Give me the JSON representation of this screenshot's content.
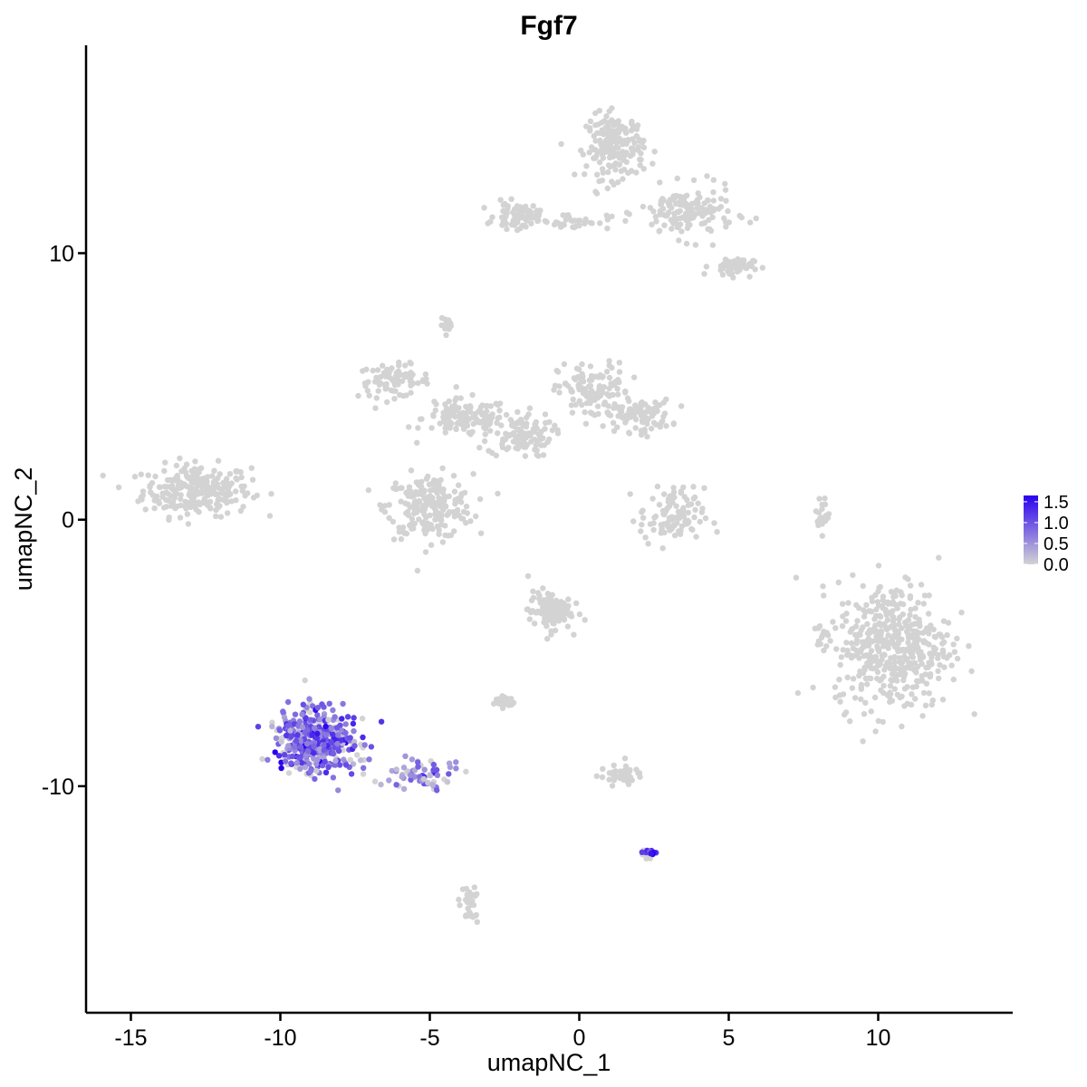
{
  "chart_data": {
    "type": "scatter",
    "title": "Fgf7",
    "xlabel": "umapNC_1",
    "ylabel": "umapNC_2",
    "xlim": [
      -16.5,
      14.5
    ],
    "ylim": [
      -18.5,
      17.8
    ],
    "xticks": [
      -15,
      -10,
      -5,
      0,
      5,
      10
    ],
    "yticks": [
      -10,
      0,
      10
    ],
    "tick_labels_x": [
      "-15",
      "-10",
      "-5",
      "0",
      "5",
      "10"
    ],
    "tick_labels_y": [
      "-10",
      "0",
      "10"
    ],
    "grid": false,
    "legend": {
      "placement": "right",
      "type": "colorbar",
      "ticks": [
        "1.5",
        "1.0",
        "0.5",
        "0.0"
      ],
      "tick_values": [
        1.5,
        1.0,
        0.5,
        0.0
      ],
      "range": [
        0.0,
        1.65
      ],
      "low_color": "#d3d3d3",
      "high_color": "#2a00f0"
    },
    "point_color_low": "#d3d3d3",
    "point_color_high": "#2a00f0",
    "clusters": [
      {
        "center": [
          -12.8,
          1.1
        ],
        "spread": [
          1.5,
          0.8
        ],
        "n": 260,
        "expr": 0
      },
      {
        "center": [
          -6.2,
          5.2
        ],
        "spread": [
          1.0,
          0.5
        ],
        "n": 80,
        "expr": 0
      },
      {
        "center": [
          -3.8,
          3.8
        ],
        "spread": [
          1.2,
          0.6
        ],
        "n": 120,
        "expr": 0
      },
      {
        "center": [
          -5.0,
          0.5
        ],
        "spread": [
          1.2,
          1.0
        ],
        "n": 220,
        "expr": 0
      },
      {
        "center": [
          -2.0,
          3.2
        ],
        "spread": [
          0.9,
          0.7
        ],
        "n": 110,
        "expr": 0
      },
      {
        "center": [
          0.5,
          4.8
        ],
        "spread": [
          1.0,
          0.9
        ],
        "n": 120,
        "expr": 0
      },
      {
        "center": [
          2.0,
          3.9
        ],
        "spread": [
          0.9,
          0.5
        ],
        "n": 90,
        "expr": 0
      },
      {
        "center": [
          -4.4,
          7.3
        ],
        "spread": [
          0.2,
          0.2
        ],
        "n": 15,
        "expr": 0
      },
      {
        "center": [
          1.2,
          14.0
        ],
        "spread": [
          0.8,
          1.0
        ],
        "n": 190,
        "expr": 0
      },
      {
        "center": [
          3.6,
          11.5
        ],
        "spread": [
          1.3,
          0.8
        ],
        "n": 150,
        "expr": 0
      },
      {
        "center": [
          -2.1,
          11.4
        ],
        "spread": [
          0.6,
          0.4
        ],
        "n": 70,
        "expr": 0
      },
      {
        "center": [
          -0.3,
          11.2
        ],
        "spread": [
          1.1,
          0.25
        ],
        "n": 40,
        "expr": 0
      },
      {
        "center": [
          5.1,
          9.5
        ],
        "spread": [
          0.6,
          0.3
        ],
        "n": 50,
        "expr": 0
      },
      {
        "center": [
          3.1,
          0.1
        ],
        "spread": [
          0.9,
          0.9
        ],
        "n": 100,
        "expr": 0
      },
      {
        "center": [
          10.5,
          -4.7
        ],
        "spread": [
          1.6,
          2.0
        ],
        "n": 460,
        "expr": 0
      },
      {
        "center": [
          8.1,
          -4.4
        ],
        "spread": [
          0.2,
          0.4
        ],
        "n": 12,
        "expr": 0
      },
      {
        "center": [
          8.1,
          0.2
        ],
        "spread": [
          0.2,
          0.6
        ],
        "n": 18,
        "expr": 0
      },
      {
        "center": [
          -1.0,
          -3.4
        ],
        "spread": [
          0.6,
          0.6
        ],
        "n": 110,
        "expr": 0
      },
      {
        "center": [
          -2.5,
          -6.8
        ],
        "spread": [
          0.3,
          0.2
        ],
        "n": 30,
        "expr": 0
      },
      {
        "center": [
          1.4,
          -9.6
        ],
        "spread": [
          0.6,
          0.3
        ],
        "n": 45,
        "expr": 0
      },
      {
        "center": [
          -3.7,
          -14.5
        ],
        "spread": [
          0.3,
          0.6
        ],
        "n": 30,
        "expr": 0
      },
      {
        "center": [
          -8.8,
          -8.3
        ],
        "spread": [
          1.1,
          1.0
        ],
        "n": 420,
        "expr": 0.55
      },
      {
        "center": [
          -5.4,
          -9.6
        ],
        "spread": [
          0.9,
          0.4
        ],
        "n": 70,
        "expr": 0.3
      },
      {
        "center": [
          2.3,
          -12.5
        ],
        "spread": [
          0.25,
          0.15
        ],
        "n": 18,
        "expr": 0.7
      }
    ]
  }
}
